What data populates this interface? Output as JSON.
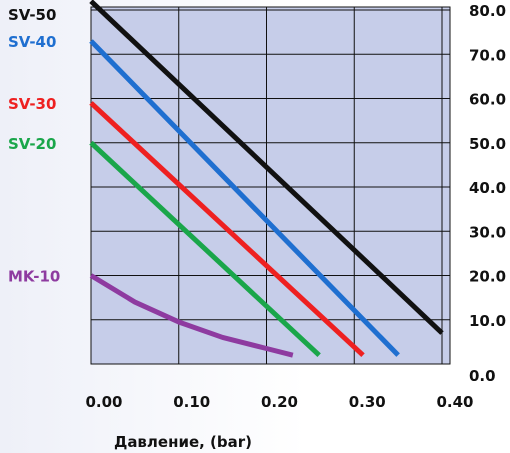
{
  "chart_data": {
    "type": "line",
    "title": "",
    "xlabel": "Давление, (bar)",
    "ylabel": "",
    "xlim": [
      0,
      0.4
    ],
    "ylim": [
      0,
      80
    ],
    "x_ticks": [
      "0.00",
      "0.10",
      "0.20",
      "0.30",
      "0.40"
    ],
    "y_ticks": [
      "0.0",
      "10.0",
      "20.0",
      "30.0",
      "40.0",
      "50.0",
      "60.0",
      "70.0",
      "80.0"
    ],
    "grid": true,
    "series": [
      {
        "name": "SV-50",
        "color": "#111111",
        "x": [
          0,
          0.4
        ],
        "y": [
          82,
          7
        ]
      },
      {
        "name": "SV-40",
        "color": "#1f6fd0",
        "x": [
          0,
          0.35
        ],
        "y": [
          73,
          2
        ]
      },
      {
        "name": "SV-30",
        "color": "#ee2020",
        "x": [
          0,
          0.31
        ],
        "y": [
          59,
          2
        ]
      },
      {
        "name": "SV-20",
        "color": "#1aa64a",
        "x": [
          0,
          0.26
        ],
        "y": [
          50,
          2
        ]
      },
      {
        "name": "MK-10",
        "color": "#8e3ba0",
        "x": [
          0,
          0.05,
          0.1,
          0.15,
          0.2,
          0.23
        ],
        "y": [
          20,
          14,
          9.5,
          6,
          3.5,
          2
        ]
      }
    ]
  }
}
